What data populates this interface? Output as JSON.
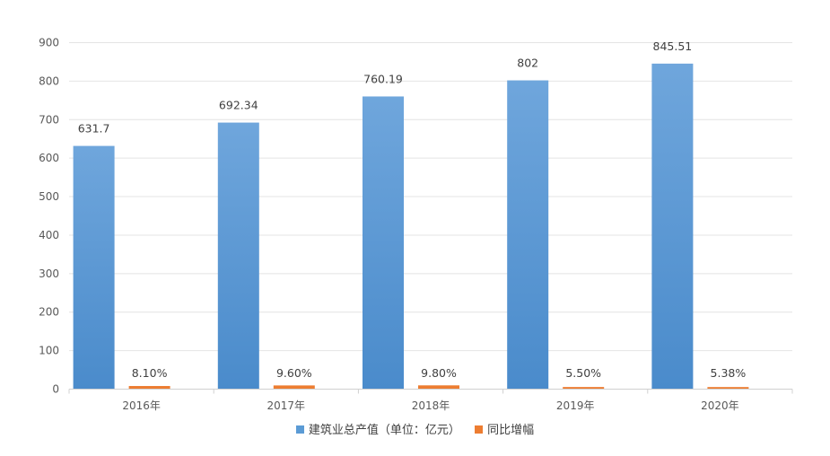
{
  "chart_data": {
    "type": "bar",
    "categories": [
      "2016年",
      "2017年",
      "2018年",
      "2019年",
      "2020年"
    ],
    "series": [
      {
        "name": "建筑业总产值（单位：亿元）",
        "values": [
          631.7,
          692.34,
          760.19,
          802,
          845.51
        ],
        "labels": [
          "631.7",
          "692.34",
          "760.19",
          "802",
          "845.51"
        ],
        "color": "#5B9BD5"
      },
      {
        "name": "同比增幅",
        "values": [
          8.1,
          9.6,
          9.8,
          5.5,
          5.38
        ],
        "labels": [
          "8.10%",
          "9.60%",
          "9.80%",
          "5.50%",
          "5.38%"
        ],
        "color": "#ED7D31"
      }
    ],
    "yticks": [
      "0",
      "100",
      "200",
      "300",
      "400",
      "500",
      "600",
      "700",
      "800",
      "900"
    ],
    "ylim": [
      0,
      900
    ],
    "grid": true,
    "legend_position": "bottom"
  }
}
